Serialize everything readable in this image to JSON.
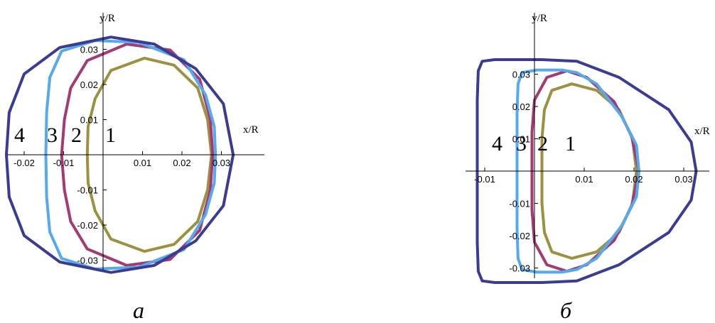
{
  "chart_data": [
    {
      "type": "line",
      "panel_label": "а",
      "xlabel": "x/R",
      "ylabel": "y/R",
      "xlim": [
        -0.025,
        0.04
      ],
      "ylim": [
        -0.036,
        0.036
      ],
      "x_ticks": [
        {
          "value": -0.02,
          "label": "-0.02"
        },
        {
          "value": -0.01,
          "label": "-0.01"
        },
        {
          "value": 0.01,
          "label": "0.01"
        },
        {
          "value": 0.02,
          "label": "0.02"
        },
        {
          "value": 0.03,
          "label": "0.03"
        }
      ],
      "y_ticks": [
        {
          "value": 0.03,
          "label": "0.03"
        },
        {
          "value": 0.02,
          "label": "0.02"
        },
        {
          "value": 0.01,
          "label": "0.01"
        },
        {
          "value": -0.01,
          "label": "-0.01"
        },
        {
          "value": -0.02,
          "label": "-0.02"
        },
        {
          "value": -0.03,
          "label": "-0.03"
        }
      ],
      "series": [
        {
          "label": "1",
          "color": "#9c9140",
          "points": [
            [
              -0.004,
              0
            ],
            [
              -0.0038,
              0.008
            ],
            [
              -0.002,
              0.016
            ],
            [
              0.002,
              0.024
            ],
            [
              0.0105,
              0.0275
            ],
            [
              0.018,
              0.0255
            ],
            [
              0.024,
              0.019
            ],
            [
              0.0265,
              0.01
            ],
            [
              0.0275,
              0
            ],
            [
              0.0265,
              -0.01
            ],
            [
              0.024,
              -0.019
            ],
            [
              0.018,
              -0.0255
            ],
            [
              0.0105,
              -0.0275
            ],
            [
              0.002,
              -0.024
            ],
            [
              -0.002,
              -0.016
            ],
            [
              -0.0038,
              -0.008
            ],
            [
              -0.004,
              0
            ]
          ]
        },
        {
          "label": "2",
          "color": "#a23b72",
          "points": [
            [
              -0.0105,
              0
            ],
            [
              -0.0098,
              0.01
            ],
            [
              -0.0082,
              0.019
            ],
            [
              -0.004,
              0.0268
            ],
            [
              0.006,
              0.0315
            ],
            [
              0.017,
              0.0298
            ],
            [
              0.0245,
              0.0215
            ],
            [
              0.0272,
              0.01
            ],
            [
              0.0278,
              0
            ],
            [
              0.0272,
              -0.01
            ],
            [
              0.0245,
              -0.0215
            ],
            [
              0.017,
              -0.0298
            ],
            [
              0.006,
              -0.0315
            ],
            [
              -0.004,
              -0.0268
            ],
            [
              -0.0082,
              -0.019
            ],
            [
              -0.0098,
              -0.01
            ],
            [
              -0.0105,
              0
            ]
          ]
        },
        {
          "label": "3",
          "color": "#55a9ec",
          "points": [
            [
              -0.0145,
              0
            ],
            [
              -0.0143,
              0.012
            ],
            [
              -0.0135,
              0.022
            ],
            [
              -0.0105,
              0.0295
            ],
            [
              -0.002,
              0.0325
            ],
            [
              0.009,
              0.032
            ],
            [
              0.0205,
              0.027
            ],
            [
              0.026,
              0.017
            ],
            [
              0.0282,
              0.008
            ],
            [
              0.0285,
              0
            ],
            [
              0.0282,
              -0.008
            ],
            [
              0.026,
              -0.017
            ],
            [
              0.0205,
              -0.027
            ],
            [
              0.009,
              -0.032
            ],
            [
              -0.002,
              -0.0325
            ],
            [
              -0.0105,
              -0.0295
            ],
            [
              -0.0135,
              -0.022
            ],
            [
              -0.0143,
              -0.012
            ],
            [
              -0.0145,
              0
            ]
          ]
        },
        {
          "label": "4",
          "color": "#3a3b93",
          "points": [
            [
              -0.0245,
              0
            ],
            [
              -0.0238,
              0.012
            ],
            [
              -0.02,
              0.023
            ],
            [
              -0.011,
              0.0305
            ],
            [
              0.002,
              0.0335
            ],
            [
              0.013,
              0.0315
            ],
            [
              0.0235,
              0.0245
            ],
            [
              0.0305,
              0.0145
            ],
            [
              0.033,
              0
            ],
            [
              0.0305,
              -0.0145
            ],
            [
              0.0235,
              -0.0245
            ],
            [
              0.013,
              -0.0315
            ],
            [
              0.002,
              -0.0335
            ],
            [
              -0.011,
              -0.0305
            ],
            [
              -0.02,
              -0.023
            ],
            [
              -0.0238,
              -0.012
            ],
            [
              -0.0245,
              0
            ]
          ]
        }
      ]
    },
    {
      "type": "line",
      "panel_label": "б",
      "xlabel": "x/R",
      "ylabel": "y/R",
      "xlim": [
        -0.013,
        0.037
      ],
      "ylim": [
        -0.039,
        0.039
      ],
      "x_ticks": [
        {
          "value": -0.01,
          "label": "-0.01"
        },
        {
          "value": 0.01,
          "label": "0.01"
        },
        {
          "value": 0.02,
          "label": "0.02"
        },
        {
          "value": 0.03,
          "label": "0.03"
        }
      ],
      "y_ticks": [
        {
          "value": 0.03,
          "label": "0.03"
        },
        {
          "value": 0.02,
          "label": "0.02"
        },
        {
          "value": 0.01,
          "label": "0.01"
        },
        {
          "value": -0.01,
          "label": "-0.01"
        },
        {
          "value": -0.02,
          "label": "-0.02"
        },
        {
          "value": -0.03,
          "label": "-0.03"
        }
      ],
      "series": [
        {
          "label": "1",
          "color": "#9c9140",
          "points": [
            [
              0.0015,
              0
            ],
            [
              0.0015,
              0.01
            ],
            [
              0.002,
              0.019
            ],
            [
              0.0035,
              0.025
            ],
            [
              0.0075,
              0.027
            ],
            [
              0.0125,
              0.025
            ],
            [
              0.017,
              0.019
            ],
            [
              0.0197,
              0.01
            ],
            [
              0.0205,
              0
            ],
            [
              0.0197,
              -0.01
            ],
            [
              0.017,
              -0.019
            ],
            [
              0.0125,
              -0.025
            ],
            [
              0.0075,
              -0.027
            ],
            [
              0.0035,
              -0.025
            ],
            [
              0.002,
              -0.019
            ],
            [
              0.0015,
              -0.01
            ],
            [
              0.0015,
              0
            ]
          ]
        },
        {
          "label": "2",
          "color": "#a23b72",
          "points": [
            [
              -0.0005,
              0
            ],
            [
              -0.0005,
              0.012
            ],
            [
              0,
              0.022
            ],
            [
              0.0025,
              0.029
            ],
            [
              0.0065,
              0.031
            ],
            [
              0.0105,
              0.029
            ],
            [
              0.016,
              0.0215
            ],
            [
              0.0195,
              0.011
            ],
            [
              0.021,
              0
            ],
            [
              0.0195,
              -0.011
            ],
            [
              0.016,
              -0.0215
            ],
            [
              0.0105,
              -0.029
            ],
            [
              0.0065,
              -0.031
            ],
            [
              0.0025,
              -0.029
            ],
            [
              0,
              -0.022
            ],
            [
              -0.0005,
              -0.012
            ],
            [
              -0.0005,
              0
            ]
          ]
        },
        {
          "label": "3",
          "color": "#55a9ec",
          "points": [
            [
              -0.0035,
              0
            ],
            [
              -0.0035,
              0.018
            ],
            [
              -0.0033,
              0.027
            ],
            [
              -0.0025,
              0.0305
            ],
            [
              0.0005,
              0.0313
            ],
            [
              0.0055,
              0.0313
            ],
            [
              0.0085,
              0.0305
            ],
            [
              0.0125,
              0.027
            ],
            [
              0.0175,
              0.017
            ],
            [
              0.0205,
              0.008
            ],
            [
              0.021,
              0
            ],
            [
              0.0205,
              -0.008
            ],
            [
              0.0175,
              -0.017
            ],
            [
              0.0125,
              -0.027
            ],
            [
              0.0085,
              -0.0305
            ],
            [
              0.0055,
              -0.0313
            ],
            [
              0.0005,
              -0.0313
            ],
            [
              -0.0025,
              -0.0305
            ],
            [
              -0.0033,
              -0.027
            ],
            [
              -0.0035,
              -0.018
            ],
            [
              -0.0035,
              0
            ]
          ]
        },
        {
          "label": "4",
          "color": "#3a3b93",
          "points": [
            [
              -0.0115,
              0
            ],
            [
              -0.0115,
              0.022
            ],
            [
              -0.0113,
              0.031
            ],
            [
              -0.0105,
              0.034
            ],
            [
              -0.008,
              0.0345
            ],
            [
              0.0015,
              0.0345
            ],
            [
              0.0085,
              0.034
            ],
            [
              0.017,
              0.029
            ],
            [
              0.027,
              0.019
            ],
            [
              0.0315,
              0.009
            ],
            [
              0.0325,
              0
            ],
            [
              0.0315,
              -0.009
            ],
            [
              0.027,
              -0.019
            ],
            [
              0.017,
              -0.029
            ],
            [
              0.0085,
              -0.034
            ],
            [
              0.0015,
              -0.0345
            ],
            [
              -0.008,
              -0.0345
            ],
            [
              -0.0105,
              -0.034
            ],
            [
              -0.0113,
              -0.031
            ],
            [
              -0.0115,
              -0.022
            ],
            [
              -0.0115,
              0
            ]
          ]
        }
      ]
    }
  ]
}
